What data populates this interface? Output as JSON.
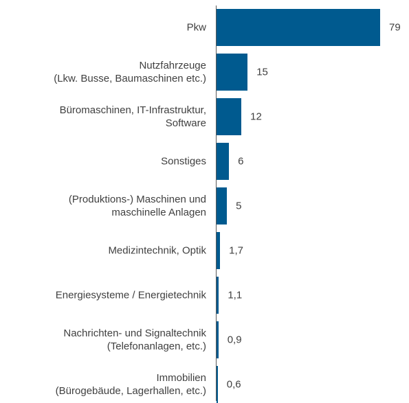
{
  "chart_data": {
    "type": "barh",
    "categories": [
      "Pkw",
      "Nutzfahrzeuge\n(Lkw. Busse, Baumaschinen etc.)",
      "Büromaschinen, IT-Infrastruktur,\nSoftware",
      "Sonstiges",
      "(Produktions-) Maschinen und\nmaschinelle Anlagen",
      "Medizintechnik, Optik",
      "Energiesysteme / Energietechnik",
      "Nachrichten- und Signaltechnik\n(Telefonanlagen, etc.)",
      "Immobilien\n(Bürogebäude, Lagerhallen, etc.)"
    ],
    "values": [
      79,
      15,
      12,
      6,
      5,
      1.7,
      1.1,
      0.9,
      0.6
    ],
    "value_labels": [
      "79",
      "15",
      "12",
      "6",
      "5",
      "1,7",
      "1,1",
      "0,9",
      "0,6"
    ],
    "color": "#005a8f"
  }
}
